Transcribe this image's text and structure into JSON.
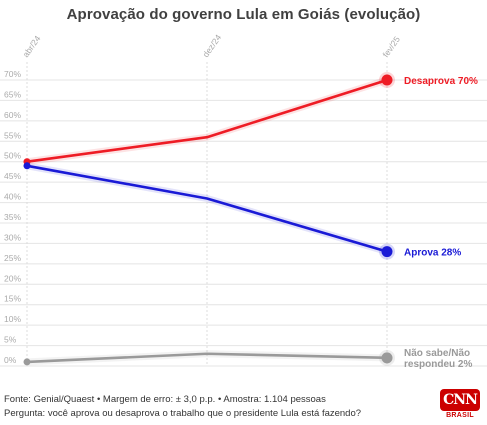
{
  "chart_data": {
    "type": "line",
    "title": "Aprovação do governo Lula em Goiás (evolução)",
    "categories": [
      "abr/24",
      "dez/24",
      "fev/25"
    ],
    "ylim": [
      0,
      70
    ],
    "yticks": [
      "0%",
      "5%",
      "10%",
      "15%",
      "20%",
      "25%",
      "30%",
      "35%",
      "40%",
      "45%",
      "50%",
      "55%",
      "60%",
      "65%",
      "70%"
    ],
    "grid": true,
    "series": [
      {
        "name": "Desaprova",
        "values": [
          50,
          56,
          70
        ],
        "color": "#ee1c25",
        "end_label": "Desaprova 70%"
      },
      {
        "name": "Aprova",
        "values": [
          49,
          41,
          28
        ],
        "color": "#1a1ad6",
        "end_label": "Aprova 28%"
      },
      {
        "name": "Não sabe/Não respondeu",
        "values": [
          1,
          3,
          2
        ],
        "color": "#9a9a9a",
        "end_label_lines": [
          "Não sabe/Não",
          "respondeu 2%"
        ]
      }
    ]
  },
  "footer": {
    "source": "Fonte: Genial/Quaest • Margem de erro: ± 3,0 p.p. • Amostra: 1.104 pessoas",
    "question": "Pergunta: você aprova ou desaprova o trabalho que o presidente Lula está fazendo?"
  },
  "logo": {
    "mark": "CNN",
    "sub": "BRASIL",
    "color": "#cc0000"
  }
}
